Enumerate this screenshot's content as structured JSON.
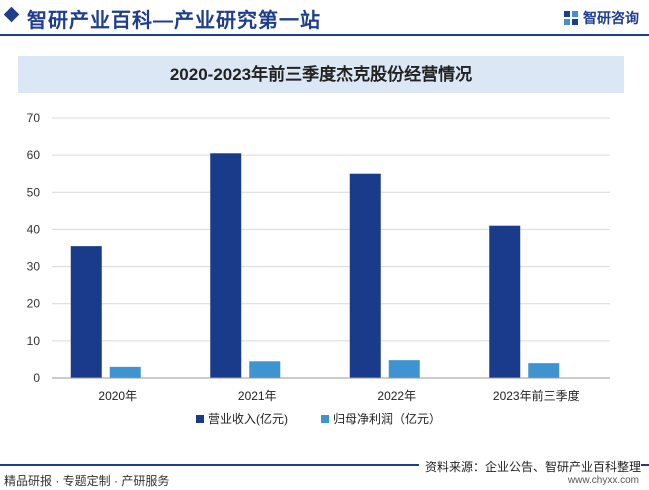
{
  "header": {
    "site_title": "智研产业百科—产业研究第一站",
    "logo_text": "智研咨询",
    "accent_color": "#1d3d8f"
  },
  "chart_data": {
    "type": "bar",
    "title": "2020-2023年前三季度杰克股份经营情况",
    "categories": [
      "2020年",
      "2021年",
      "2022年",
      "2023年前三季度"
    ],
    "series": [
      {
        "name": "营业收入(亿元)",
        "color": "#1a3a8a",
        "values": [
          35.5,
          60.5,
          55,
          41
        ]
      },
      {
        "name": "归母净利润（亿元）",
        "color": "#3d94d1",
        "values": [
          3,
          4.5,
          4.8,
          4
        ]
      }
    ],
    "ylim": [
      0,
      70
    ],
    "yticks": [
      "0",
      "10",
      "20",
      "30",
      "40",
      "50",
      "60",
      "70"
    ],
    "grid": true,
    "legend_position": "bottom",
    "xlabel": "",
    "ylabel": ""
  },
  "footer": {
    "left": "精品研报 · 专题定制 · 产研服务",
    "source": "资料来源：企业公告、智研产业百科整理",
    "url": "www.chyxx.com"
  }
}
